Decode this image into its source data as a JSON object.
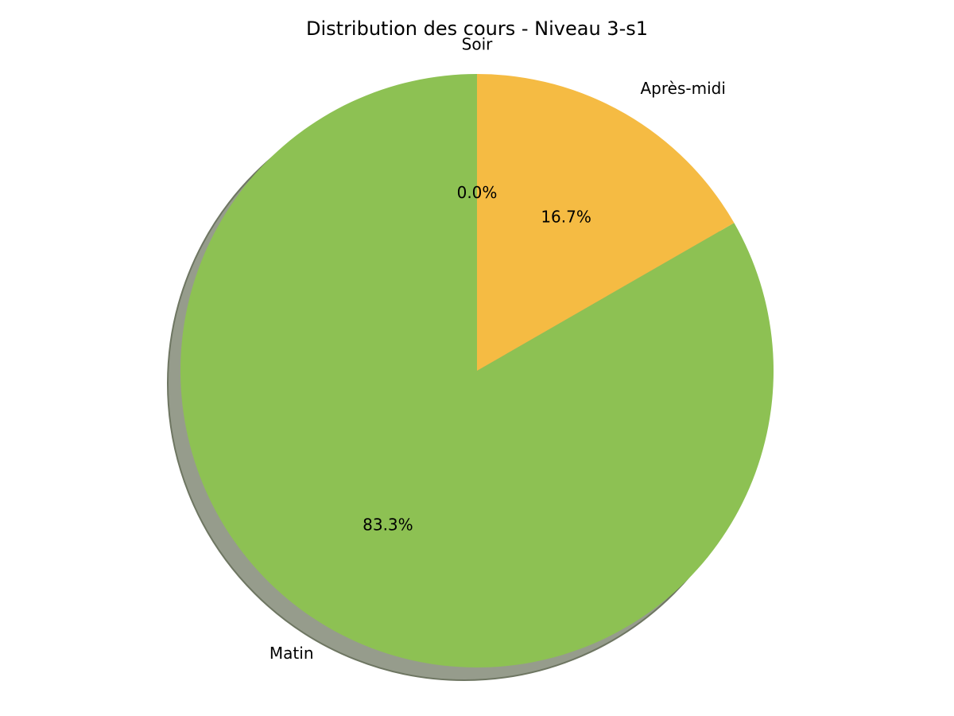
{
  "chart_data": {
    "type": "pie",
    "title": "Distribution des cours - Niveau 3-s1",
    "start_angle": 90,
    "counterclockwise": true,
    "shadow": true,
    "slices": [
      {
        "label": "Matin",
        "value": 83.3,
        "pct_label": "83.3%",
        "color": "#8dc153"
      },
      {
        "label": "Après-midi",
        "value": 16.7,
        "pct_label": "16.7%",
        "color": "#f5bb43"
      },
      {
        "label": "Soir",
        "value": 0.0,
        "pct_label": "0.0%",
        "color": "#4a90d9"
      }
    ]
  }
}
